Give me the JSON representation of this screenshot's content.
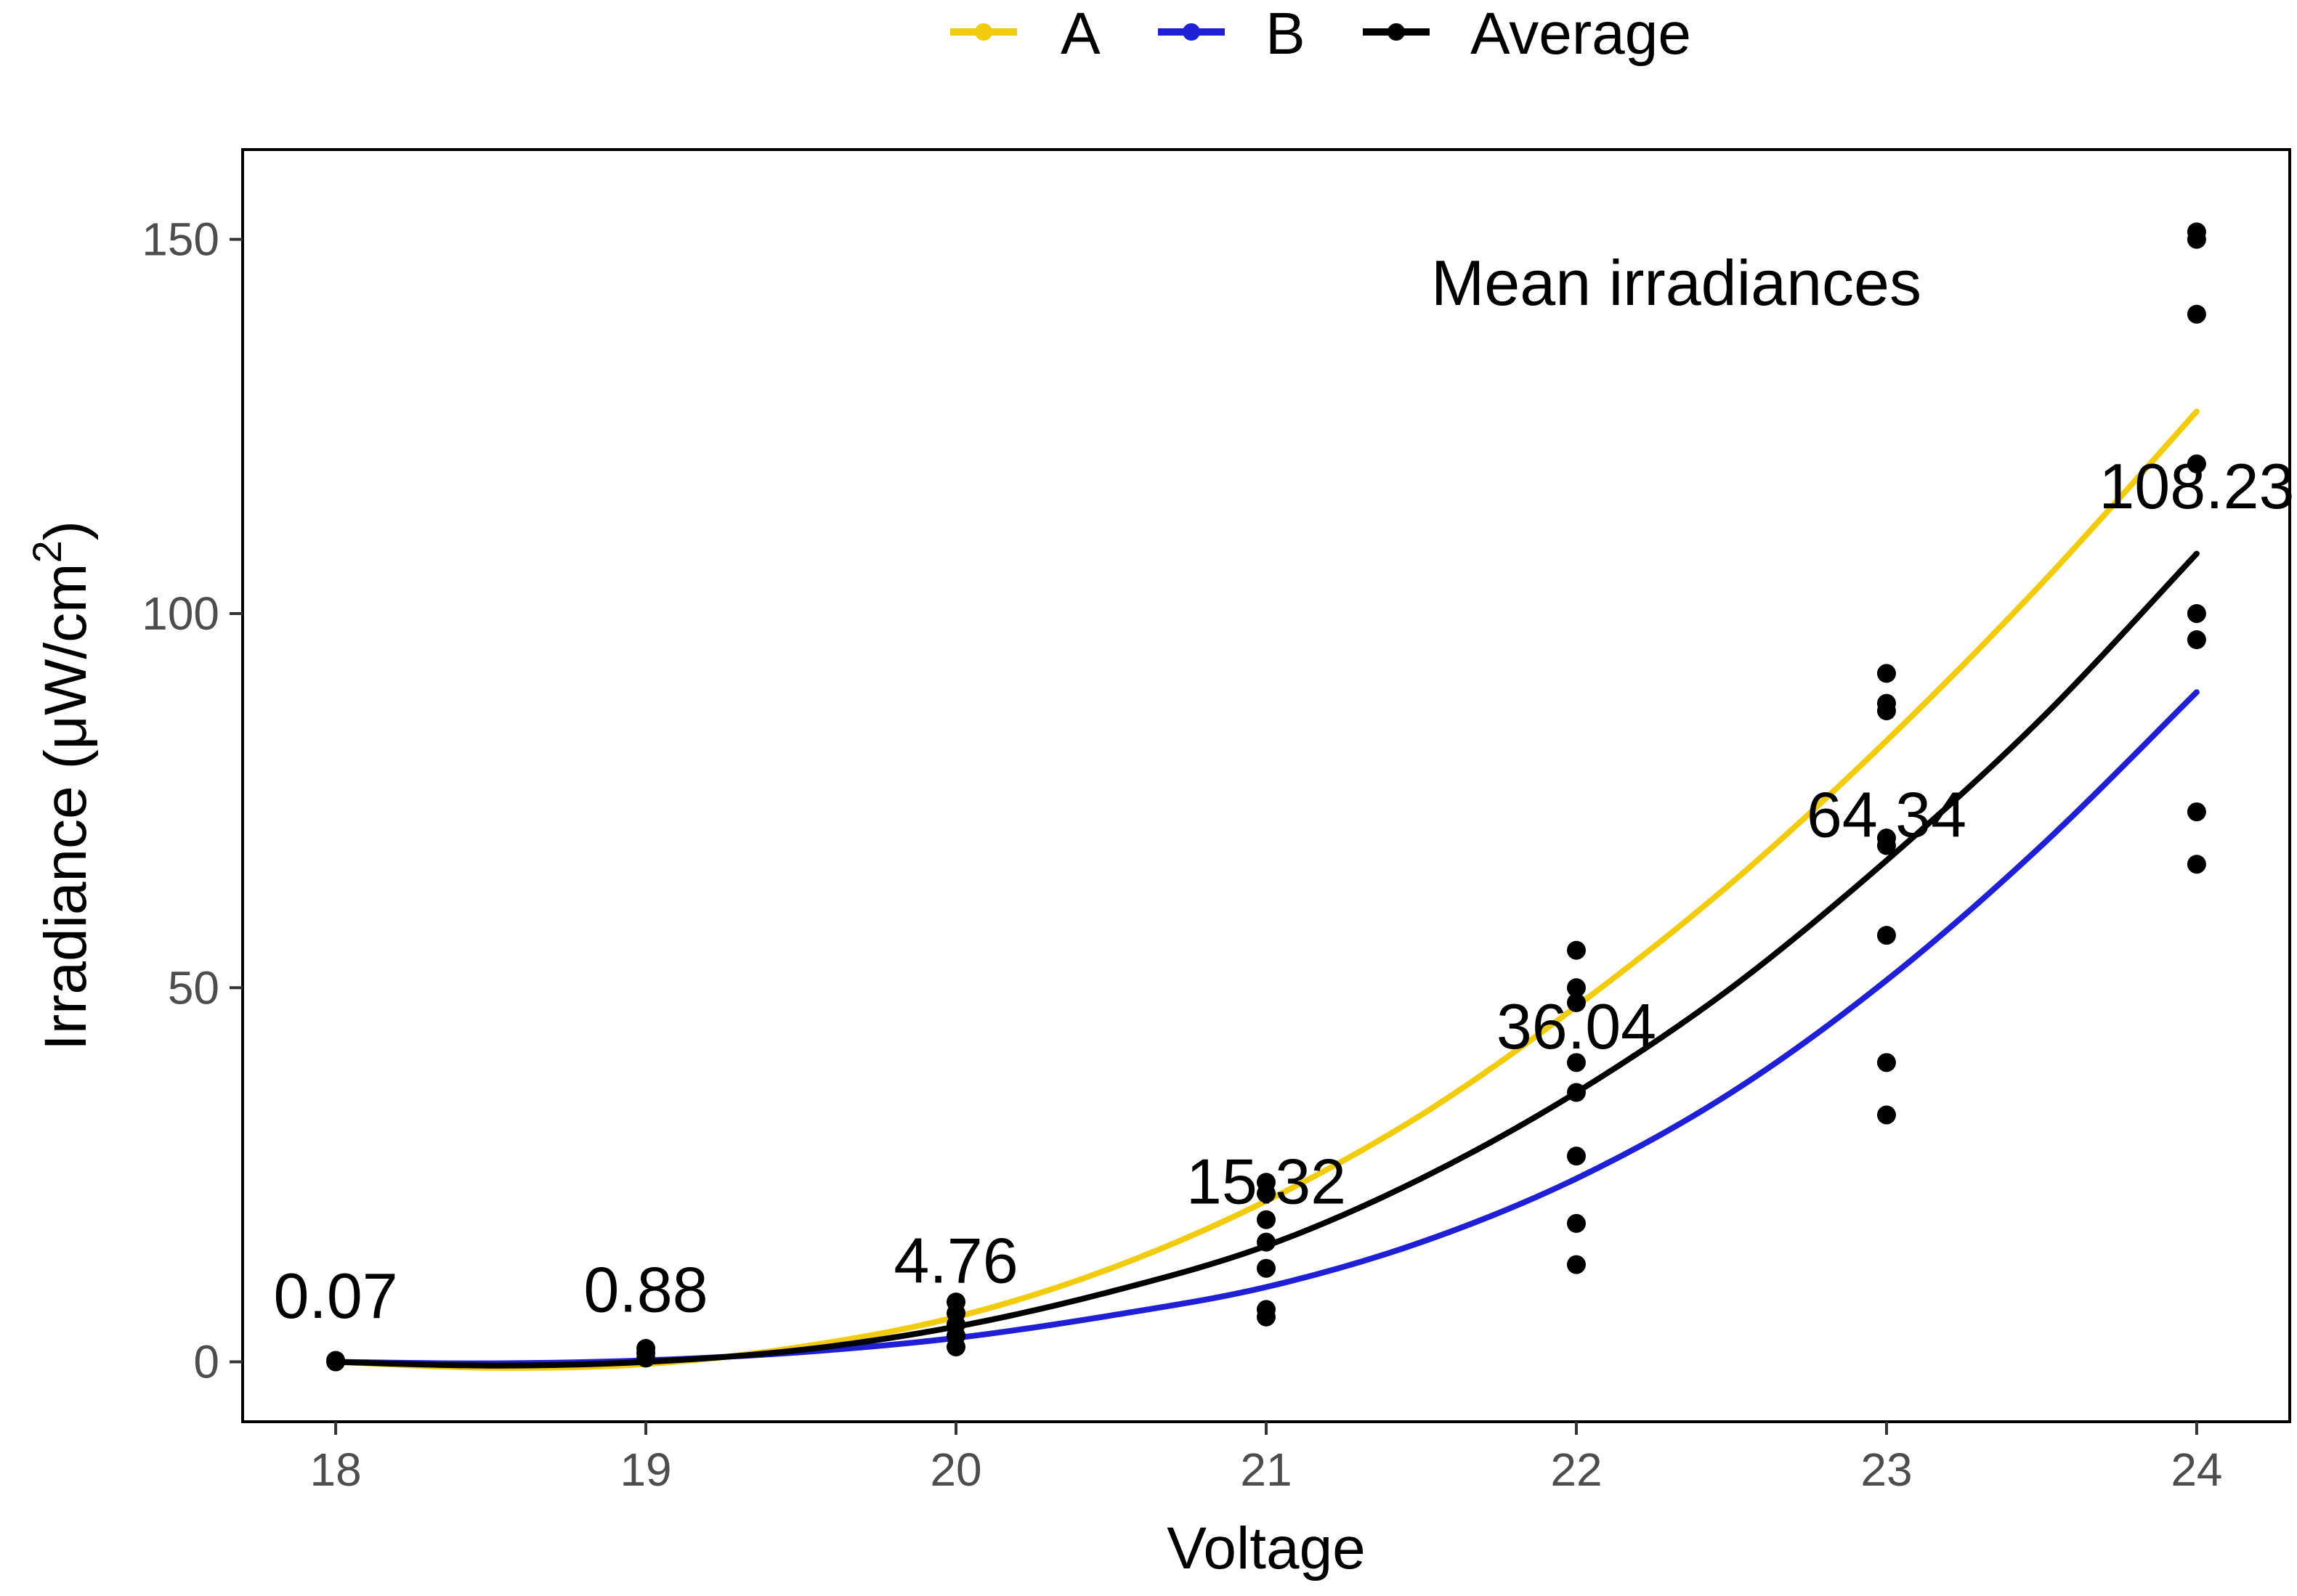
{
  "chart_data": {
    "type": "scatter",
    "title": "",
    "xlabel": "Voltage",
    "ylabel": "Irradiance (μW/cm²)",
    "ylabel_parts": {
      "main": "Irradiance (μW/cm",
      "sup": "2",
      "close": ")"
    },
    "xlim": [
      17.7,
      24.3
    ],
    "ylim": [
      -8,
      162
    ],
    "x_ticks": [
      18,
      19,
      20,
      21,
      22,
      23,
      24
    ],
    "y_ticks": [
      0,
      50,
      100,
      150
    ],
    "legend": {
      "position": "top",
      "entries": [
        {
          "name": "A",
          "color": "#f2cc0c"
        },
        {
          "name": "B",
          "color": "#1f1fd6"
        },
        {
          "name": "Average",
          "color": "#000000"
        }
      ]
    },
    "series": [
      {
        "name": "A",
        "color": "#f2cc0c",
        "x": [
          18,
          18.5,
          19,
          19.5,
          20,
          20.5,
          21,
          21.5,
          22,
          22.5,
          23,
          23.5,
          24
        ],
        "y": [
          0,
          -0.8,
          -0.3,
          2.0,
          6.0,
          12.5,
          21.5,
          33.0,
          47.5,
          64.0,
          83.0,
          104.0,
          127.0
        ]
      },
      {
        "name": "B",
        "color": "#1f1fd6",
        "x": [
          18,
          18.5,
          19,
          19.5,
          20,
          20.5,
          21,
          21.5,
          22,
          22.5,
          23,
          23.5,
          24
        ],
        "y": [
          0,
          -0.2,
          0.2,
          1.3,
          3.2,
          6.2,
          10.0,
          16.0,
          24.5,
          36.0,
          51.0,
          69.0,
          89.5
        ]
      },
      {
        "name": "Average",
        "color": "#000000",
        "x": [
          18,
          18.5,
          19,
          19.5,
          20,
          20.5,
          21,
          21.5,
          22,
          22.5,
          23,
          23.5,
          24
        ],
        "y": [
          0,
          -0.5,
          0,
          1.6,
          4.7,
          9.4,
          15.5,
          24.5,
          36.0,
          50.0,
          67.0,
          86.0,
          108.0
        ]
      }
    ],
    "points": {
      "color": "#000000",
      "x": [
        18,
        18,
        19,
        19,
        19,
        20,
        20,
        20,
        20,
        20,
        21,
        21,
        21,
        21,
        21,
        21,
        21,
        22,
        22,
        22,
        22,
        22,
        22,
        22,
        22,
        23,
        23,
        23,
        23,
        23,
        23,
        23,
        23,
        24,
        24,
        24,
        24,
        24,
        24,
        24,
        24
      ],
      "y": [
        0,
        0.2,
        0.5,
        1.2,
        1.8,
        2.0,
        3.5,
        5.0,
        6.5,
        8.0,
        6.0,
        7.0,
        12.5,
        16.0,
        19.0,
        22.5,
        24.0,
        13.0,
        18.5,
        27.5,
        36.0,
        40.0,
        48.0,
        50.0,
        55.0,
        33.0,
        40.0,
        57.0,
        69.0,
        70.0,
        87.0,
        88.0,
        92.0,
        66.5,
        73.5,
        96.5,
        100.0,
        120.0,
        140.0,
        150.0,
        151.0
      ]
    },
    "annotations": [
      {
        "x": 18,
        "y": 0.07,
        "label": "0.07"
      },
      {
        "x": 19,
        "y": 0.88,
        "label": "0.88"
      },
      {
        "x": 20,
        "y": 4.76,
        "label": "4.76"
      },
      {
        "x": 21,
        "y": 15.32,
        "label": "15.32"
      },
      {
        "x": 22,
        "y": 36.04,
        "label": "36.04"
      },
      {
        "x": 23,
        "y": 64.34,
        "label": "64.34"
      },
      {
        "x": 24,
        "y": 108.23,
        "label": "108.23"
      }
    ],
    "annotation_title": "Mean irradiances"
  }
}
